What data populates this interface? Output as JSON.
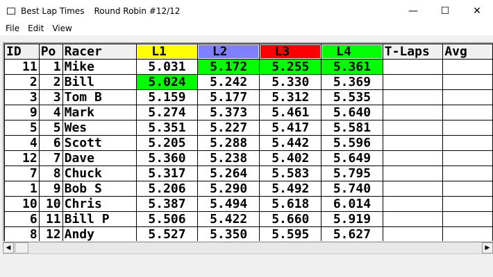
{
  "window": {
    "title": "Best Lap Times",
    "subtitle": "Round Robin #12/12",
    "minimize": "—",
    "maximize": "☐",
    "close": "✕"
  },
  "menu": [
    "File",
    "Edit",
    "View"
  ],
  "columns": [
    {
      "label": "ID"
    },
    {
      "label": "Po"
    },
    {
      "label": "Racer"
    },
    {
      "label": "L1",
      "color": "#ffff00"
    },
    {
      "label": "L2",
      "color": "#8080ff"
    },
    {
      "label": "L3",
      "color": "#ff0000"
    },
    {
      "label": "L4",
      "color": "#00ff00"
    },
    {
      "label": "T-Laps"
    },
    {
      "label": "Avg"
    }
  ],
  "highlight_color": "#00ff00",
  "rows": [
    {
      "id": "11",
      "pos": "1",
      "racer": "Mike",
      "laps": [
        "5.031",
        "5.172",
        "5.255",
        "5.361"
      ],
      "best": [
        1,
        2,
        3
      ],
      "tlaps": "",
      "avg": ""
    },
    {
      "id": "2",
      "pos": "2",
      "racer": "Bill",
      "laps": [
        "5.024",
        "5.242",
        "5.330",
        "5.369"
      ],
      "best": [
        0
      ],
      "tlaps": "",
      "avg": ""
    },
    {
      "id": "3",
      "pos": "3",
      "racer": "Tom B",
      "laps": [
        "5.159",
        "5.177",
        "5.312",
        "5.535"
      ],
      "best": [],
      "tlaps": "",
      "avg": ""
    },
    {
      "id": "9",
      "pos": "4",
      "racer": "Mark",
      "laps": [
        "5.274",
        "5.373",
        "5.461",
        "5.640"
      ],
      "best": [],
      "tlaps": "",
      "avg": ""
    },
    {
      "id": "5",
      "pos": "5",
      "racer": "Wes",
      "laps": [
        "5.351",
        "5.227",
        "5.417",
        "5.581"
      ],
      "best": [],
      "tlaps": "",
      "avg": ""
    },
    {
      "id": "4",
      "pos": "6",
      "racer": "Scott",
      "laps": [
        "5.205",
        "5.288",
        "5.442",
        "5.596"
      ],
      "best": [],
      "tlaps": "",
      "avg": ""
    },
    {
      "id": "12",
      "pos": "7",
      "racer": "Dave",
      "laps": [
        "5.360",
        "5.238",
        "5.402",
        "5.649"
      ],
      "best": [],
      "tlaps": "",
      "avg": ""
    },
    {
      "id": "7",
      "pos": "8",
      "racer": "Chuck",
      "laps": [
        "5.317",
        "5.264",
        "5.583",
        "5.795"
      ],
      "best": [],
      "tlaps": "",
      "avg": ""
    },
    {
      "id": "1",
      "pos": "9",
      "racer": "Bob S",
      "laps": [
        "5.206",
        "5.290",
        "5.492",
        "5.740"
      ],
      "best": [],
      "tlaps": "",
      "avg": ""
    },
    {
      "id": "10",
      "pos": "10",
      "racer": "Chris",
      "laps": [
        "5.387",
        "5.494",
        "5.618",
        "6.014"
      ],
      "best": [],
      "tlaps": "",
      "avg": ""
    },
    {
      "id": "6",
      "pos": "11",
      "racer": "Bill P",
      "laps": [
        "5.506",
        "5.422",
        "5.660",
        "5.919"
      ],
      "best": [],
      "tlaps": "",
      "avg": ""
    },
    {
      "id": "8",
      "pos": "12",
      "racer": "Andy",
      "laps": [
        "5.527",
        "5.350",
        "5.595",
        "5.627"
      ],
      "best": [],
      "tlaps": "",
      "avg": ""
    }
  ]
}
